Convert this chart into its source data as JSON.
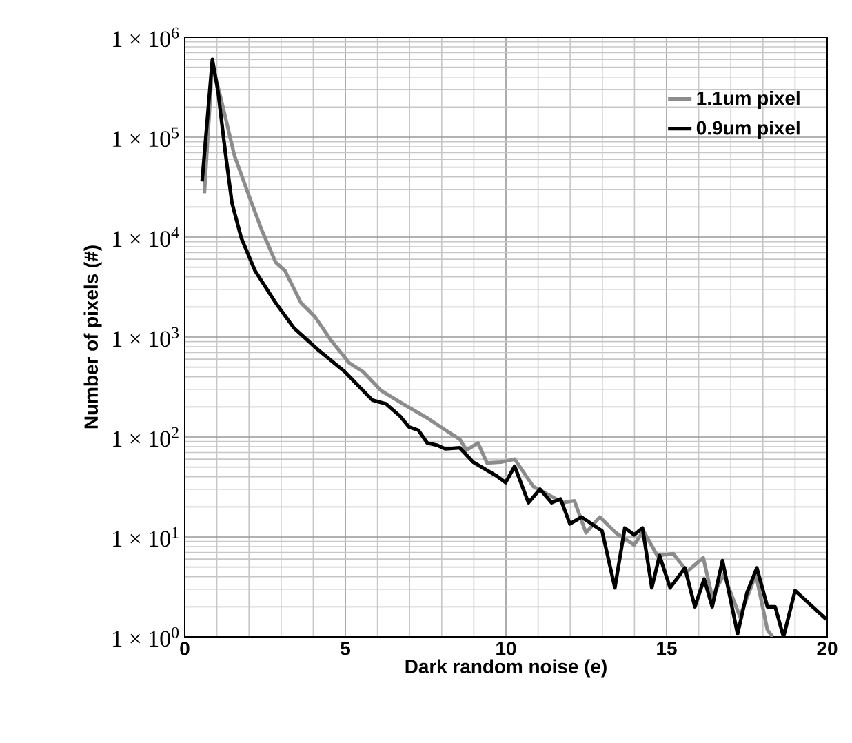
{
  "chart_data": {
    "type": "line",
    "xlabel": "Dark random noise (e)",
    "ylabel": "Number of pixels (#)",
    "xlim": [
      0,
      20
    ],
    "ylim": [
      1,
      1000000
    ],
    "xticks": [
      0,
      5,
      10,
      15,
      20
    ],
    "yticks": [
      {
        "value": 1,
        "label": "1 × 10$^{0}$"
      },
      {
        "value": 10,
        "label": "1 × 10$^{1}$"
      },
      {
        "value": 100,
        "label": "1 × 10$^{2}$"
      },
      {
        "value": 1000,
        "label": "1 × 10$^{3}$"
      },
      {
        "value": 10000,
        "label": "1 × 10$^{4}$"
      },
      {
        "value": 100000,
        "label": "1 × 10$^{5}$"
      },
      {
        "value": 1000000,
        "label": "1 × 10$^{6}$"
      }
    ],
    "log": "y",
    "grid": true,
    "legend": "top right",
    "line_style": "solid",
    "marker": "none",
    "series": [
      {
        "name": "1.1um pixel",
        "color": "#8c8c8c",
        "x": [
          0.61,
          0.86,
          1.19,
          1.55,
          1.97,
          2.4,
          2.83,
          3.12,
          3.62,
          4.05,
          4.55,
          5.12,
          5.55,
          6.12,
          6.84,
          7.55,
          8.12,
          8.56,
          8.77,
          9.13,
          9.41,
          9.84,
          10.27,
          10.85,
          11.27,
          11.77,
          12.13,
          12.49,
          12.92,
          13.42,
          13.99,
          14.28,
          14.71,
          15.21,
          15.64,
          16.14,
          16.42,
          16.78,
          17.28,
          17.78,
          18.14,
          18.3
        ],
        "values": [
          27500,
          540000,
          200000,
          65000,
          27500,
          11700,
          5600,
          4600,
          2200,
          1600,
          930,
          550,
          450,
          290,
          210,
          155,
          117,
          95,
          74,
          87,
          55,
          56,
          60,
          32,
          27,
          22,
          23,
          11,
          15.8,
          11,
          8.3,
          11.5,
          6.5,
          6.8,
          4.5,
          6.2,
          2.5,
          4.2,
          1.6,
          4.2,
          1.17,
          1
        ]
      },
      {
        "name": "0.9um pixel",
        "color": "#000000",
        "x": [
          0.54,
          0.86,
          1.04,
          1.26,
          1.47,
          1.76,
          2.19,
          2.83,
          3.4,
          4.12,
          4.98,
          5.84,
          6.27,
          6.7,
          6.98,
          7.27,
          7.55,
          7.84,
          8.12,
          8.56,
          8.98,
          9.7,
          9.99,
          10.27,
          10.7,
          11.06,
          11.42,
          11.7,
          11.99,
          12.35,
          12.99,
          13.39,
          13.7,
          13.99,
          14.25,
          14.54,
          14.78,
          15.11,
          15.57,
          15.88,
          16.17,
          16.42,
          16.74,
          17.21,
          17.5,
          17.81,
          18.14,
          18.38,
          18.64,
          19.0,
          19.97
        ],
        "values": [
          36000,
          600000,
          280000,
          72000,
          22000,
          9800,
          4600,
          2200,
          1230,
          760,
          450,
          234,
          214,
          162,
          126,
          117,
          87,
          83,
          76,
          78,
          56,
          41,
          35,
          51,
          22,
          30,
          22,
          24,
          13.5,
          15.8,
          11.5,
          3.1,
          12.3,
          10.5,
          12.3,
          3.1,
          6.5,
          3.1,
          4.9,
          2.0,
          3.8,
          2.0,
          5.8,
          1.07,
          2.75,
          4.9,
          2.0,
          2.0,
          1,
          2.9,
          1.5
        ]
      }
    ]
  }
}
